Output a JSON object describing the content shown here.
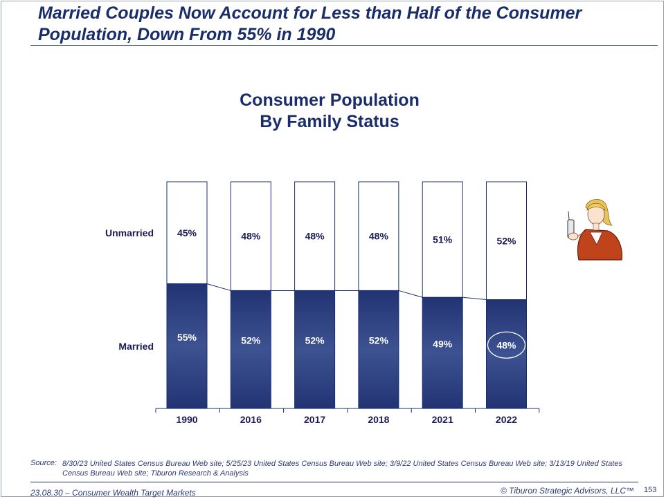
{
  "slide": {
    "headline": "Married Couples Now Account for Less than Half of the Consumer Population, Down From 55% in 1990",
    "source_label": "Source:",
    "source_text": "8/30/23 United States Census Bureau Web site; 5/25/23 United States Census Bureau Web site; 3/9/22 United States Census Bureau Web site; 3/13/19 United States Census Bureau Web site; Tiburon Research & Analysis",
    "footer_left": "23.08.30 – Consumer Wealth Target Markets",
    "footer_right": "© Tiburon Strategic Advisors, LLC™",
    "page_number": "153"
  },
  "chart_data": {
    "type": "bar",
    "stacked": true,
    "title_line1": "Consumer Population",
    "title_line2": "By Family Status",
    "categories": [
      "1990",
      "2016",
      "2017",
      "2018",
      "2021",
      "2022"
    ],
    "series": [
      {
        "name": "Married",
        "values": [
          55,
          52,
          52,
          52,
          49,
          48
        ],
        "labels": [
          "55%",
          "52%",
          "52%",
          "52%",
          "49%",
          "48%"
        ]
      },
      {
        "name": "Unmarried",
        "values": [
          45,
          48,
          48,
          48,
          51,
          52
        ],
        "labels": [
          "45%",
          "48%",
          "48%",
          "48%",
          "51%",
          "52%"
        ]
      }
    ],
    "highlighted": {
      "series": "Married",
      "category": "2022"
    },
    "ylim": [
      0,
      100
    ],
    "colors": {
      "married_top": "#223373",
      "married_mid": "#3d5291",
      "unmarried": "#ffffff",
      "title": "#1a2d6b",
      "label_dark": "#1b1b55"
    }
  }
}
